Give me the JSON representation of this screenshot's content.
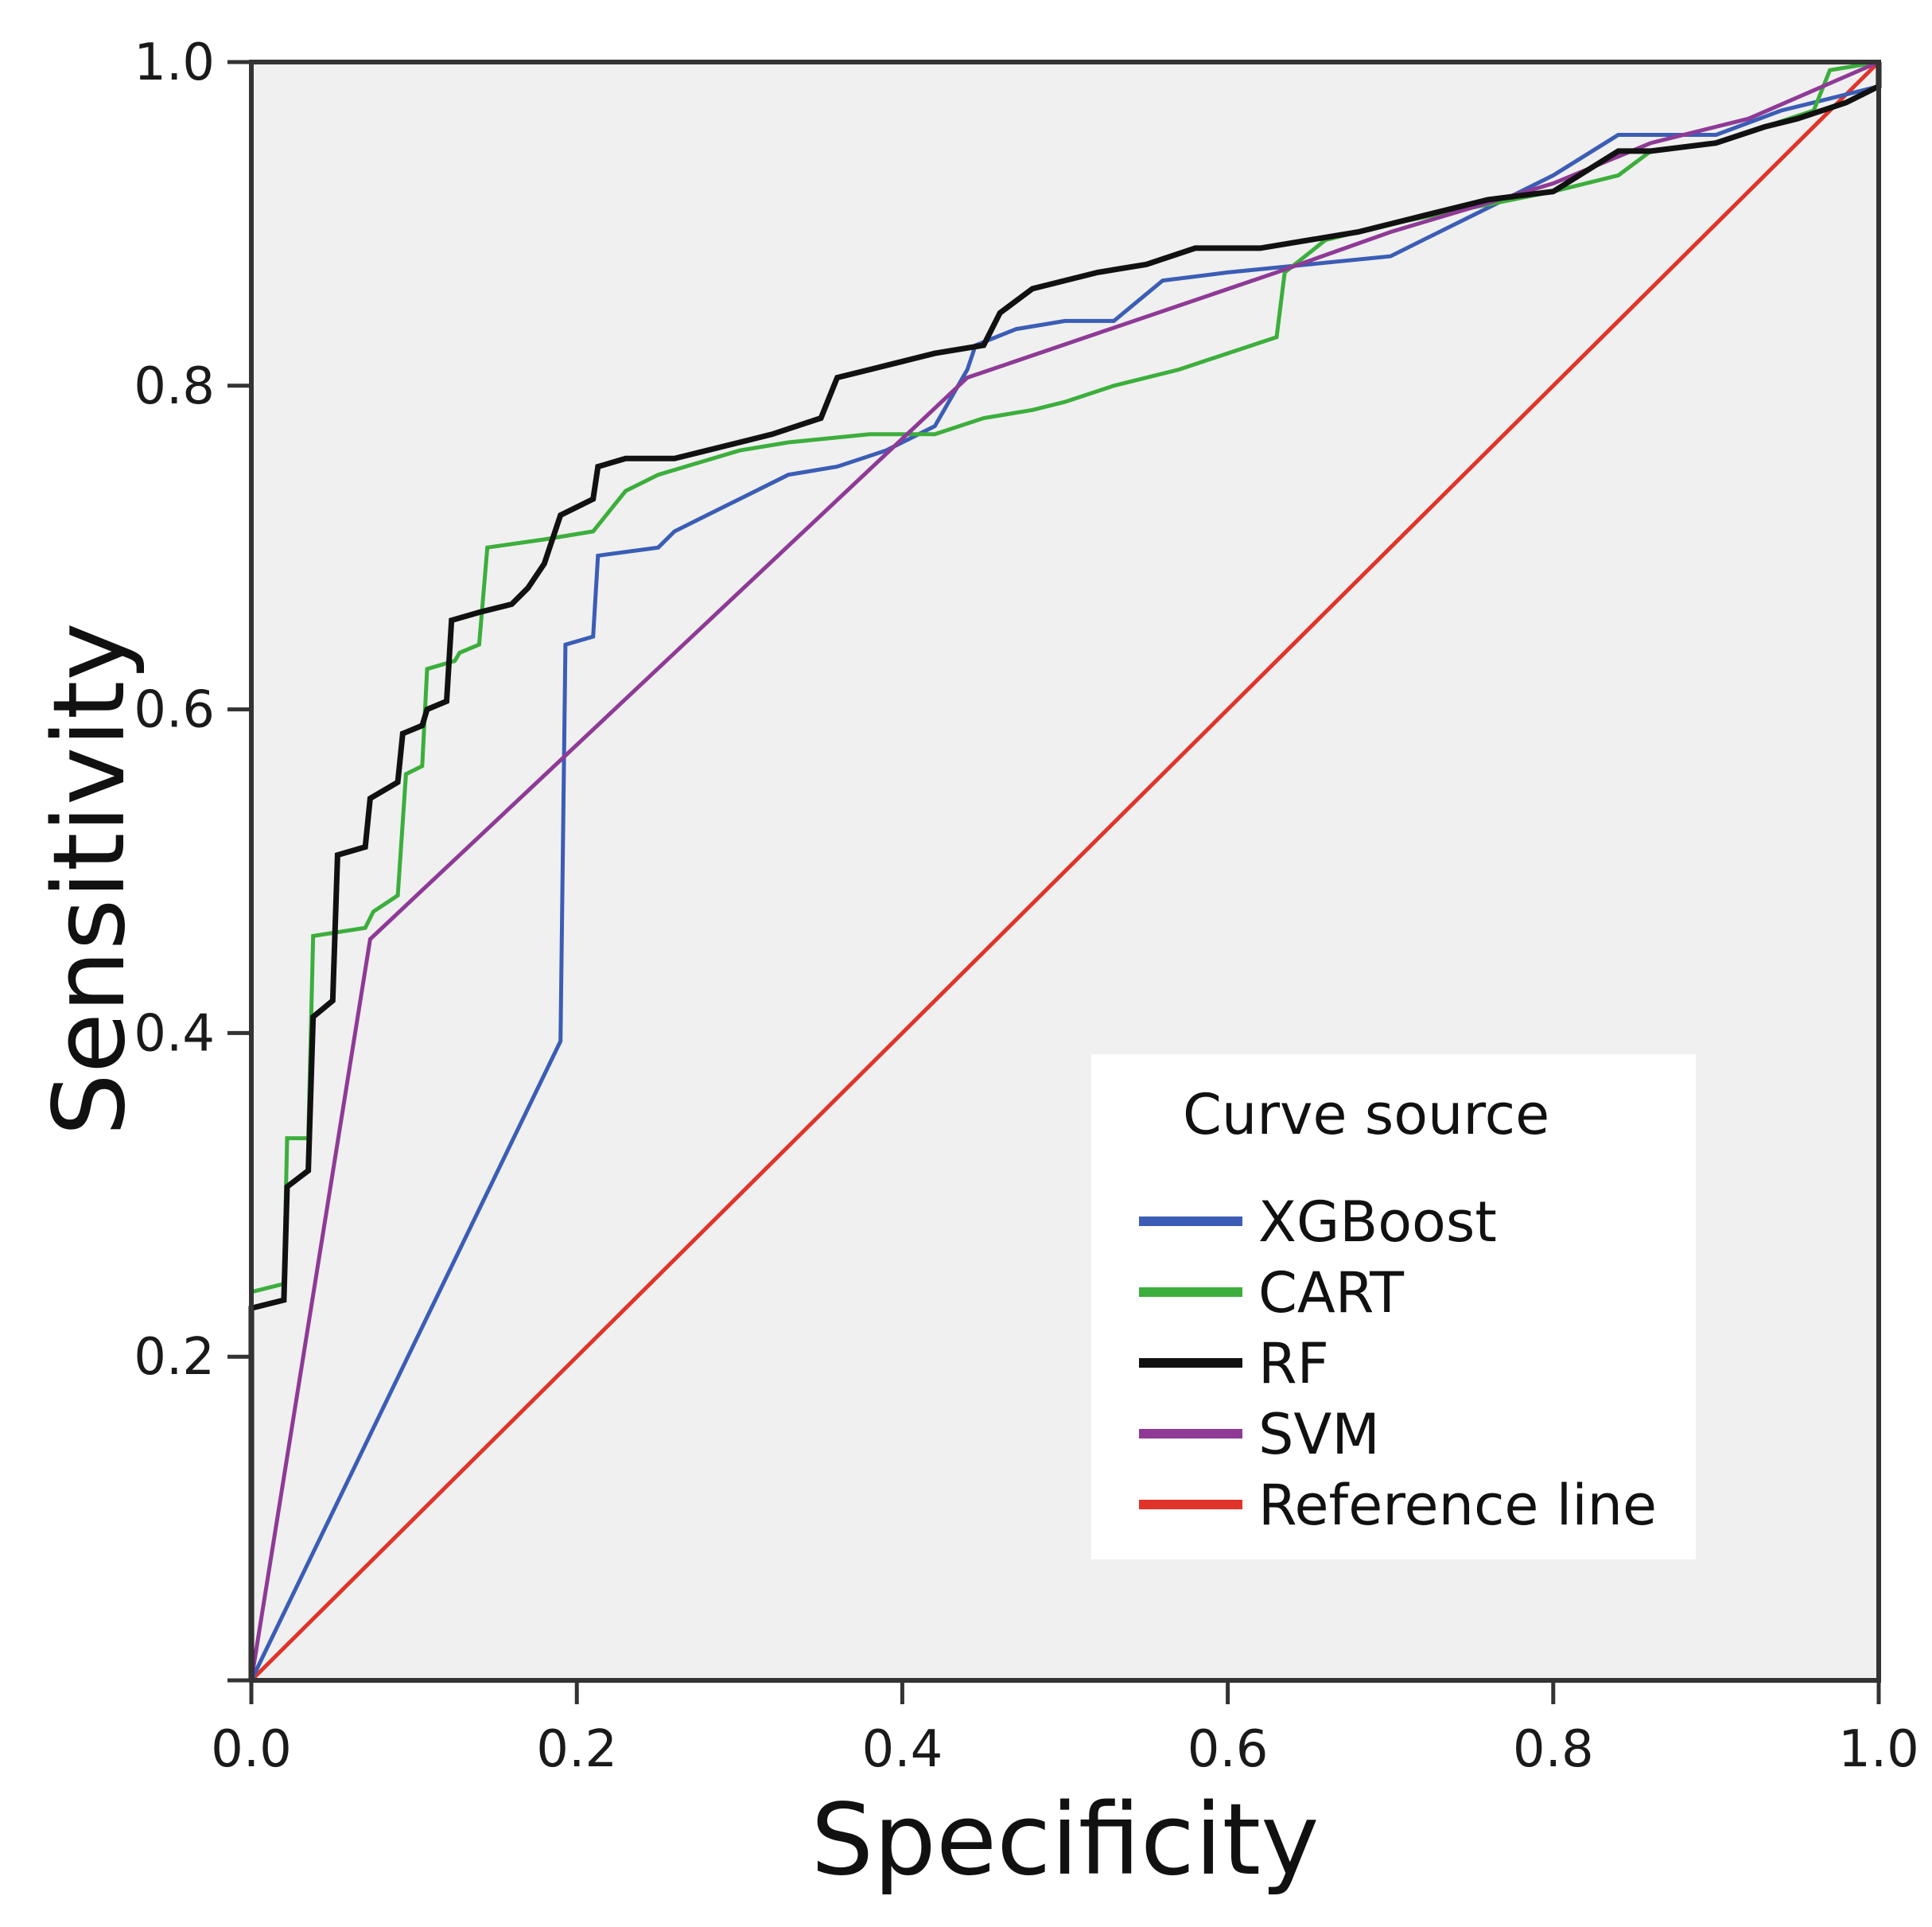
{
  "chart_data": {
    "type": "line",
    "title": "",
    "xlabel": "Specificity",
    "ylabel": "Sensitivity",
    "xlim": [
      0,
      1
    ],
    "ylim": [
      0,
      1
    ],
    "x_ticks": [
      "0.0",
      "0.2",
      "0.4",
      "0.6",
      "0.8",
      "1.0"
    ],
    "y_ticks": [
      "",
      "0.2",
      "0.4",
      "0.6",
      "0.8",
      "1.0"
    ],
    "grid": false,
    "background": "#f0f0f0",
    "legend": {
      "title": "Curve source",
      "placement": "bottom-right"
    },
    "series": [
      {
        "name": "XGBoost",
        "color": "#3b5db5",
        "points": [
          [
            0,
            0
          ],
          [
            0.19,
            0.395
          ],
          [
            0.193,
            0.64
          ],
          [
            0.21,
            0.645
          ],
          [
            0.213,
            0.695
          ],
          [
            0.25,
            0.7
          ],
          [
            0.26,
            0.71
          ],
          [
            0.28,
            0.72
          ],
          [
            0.3,
            0.73
          ],
          [
            0.33,
            0.745
          ],
          [
            0.36,
            0.75
          ],
          [
            0.39,
            0.76
          ],
          [
            0.42,
            0.775
          ],
          [
            0.44,
            0.81
          ],
          [
            0.445,
            0.825
          ],
          [
            0.47,
            0.835
          ],
          [
            0.5,
            0.84
          ],
          [
            0.53,
            0.84
          ],
          [
            0.56,
            0.865
          ],
          [
            0.6,
            0.87
          ],
          [
            0.65,
            0.875
          ],
          [
            0.7,
            0.88
          ],
          [
            0.72,
            0.89
          ],
          [
            0.76,
            0.91
          ],
          [
            0.8,
            0.93
          ],
          [
            0.84,
            0.955
          ],
          [
            0.9,
            0.955
          ],
          [
            0.94,
            0.97
          ],
          [
            0.96,
            0.975
          ],
          [
            1,
            0.985
          ],
          [
            1,
            1
          ]
        ]
      },
      {
        "name": "CART",
        "color": "#3cae3c",
        "points": [
          [
            0,
            0
          ],
          [
            0,
            0.24
          ],
          [
            0.02,
            0.245
          ],
          [
            0.022,
            0.335
          ],
          [
            0.035,
            0.335
          ],
          [
            0.038,
            0.46
          ],
          [
            0.07,
            0.465
          ],
          [
            0.075,
            0.475
          ],
          [
            0.09,
            0.485
          ],
          [
            0.095,
            0.56
          ],
          [
            0.105,
            0.565
          ],
          [
            0.108,
            0.625
          ],
          [
            0.125,
            0.63
          ],
          [
            0.128,
            0.635
          ],
          [
            0.14,
            0.64
          ],
          [
            0.145,
            0.7
          ],
          [
            0.18,
            0.705
          ],
          [
            0.21,
            0.71
          ],
          [
            0.23,
            0.735
          ],
          [
            0.25,
            0.745
          ],
          [
            0.3,
            0.76
          ],
          [
            0.33,
            0.765
          ],
          [
            0.38,
            0.77
          ],
          [
            0.42,
            0.77
          ],
          [
            0.45,
            0.78
          ],
          [
            0.48,
            0.785
          ],
          [
            0.5,
            0.79
          ],
          [
            0.53,
            0.8
          ],
          [
            0.57,
            0.81
          ],
          [
            0.6,
            0.82
          ],
          [
            0.63,
            0.83
          ],
          [
            0.635,
            0.87
          ],
          [
            0.66,
            0.89
          ],
          [
            0.7,
            0.9
          ],
          [
            0.75,
            0.91
          ],
          [
            0.8,
            0.92
          ],
          [
            0.84,
            0.93
          ],
          [
            0.86,
            0.945
          ],
          [
            0.9,
            0.95
          ],
          [
            0.96,
            0.97
          ],
          [
            0.97,
            0.995
          ],
          [
            1,
            1
          ]
        ]
      },
      {
        "name": "RF",
        "color": "#111111",
        "points": [
          [
            0,
            0
          ],
          [
            0,
            0.23
          ],
          [
            0.02,
            0.235
          ],
          [
            0.022,
            0.305
          ],
          [
            0.035,
            0.315
          ],
          [
            0.038,
            0.41
          ],
          [
            0.05,
            0.42
          ],
          [
            0.053,
            0.51
          ],
          [
            0.07,
            0.515
          ],
          [
            0.073,
            0.545
          ],
          [
            0.09,
            0.555
          ],
          [
            0.093,
            0.585
          ],
          [
            0.105,
            0.59
          ],
          [
            0.108,
            0.6
          ],
          [
            0.12,
            0.605
          ],
          [
            0.123,
            0.655
          ],
          [
            0.14,
            0.66
          ],
          [
            0.16,
            0.665
          ],
          [
            0.17,
            0.675
          ],
          [
            0.18,
            0.69
          ],
          [
            0.19,
            0.72
          ],
          [
            0.21,
            0.73
          ],
          [
            0.213,
            0.75
          ],
          [
            0.23,
            0.755
          ],
          [
            0.26,
            0.755
          ],
          [
            0.3,
            0.765
          ],
          [
            0.32,
            0.77
          ],
          [
            0.35,
            0.78
          ],
          [
            0.36,
            0.805
          ],
          [
            0.38,
            0.81
          ],
          [
            0.4,
            0.815
          ],
          [
            0.42,
            0.82
          ],
          [
            0.45,
            0.825
          ],
          [
            0.46,
            0.845
          ],
          [
            0.48,
            0.86
          ],
          [
            0.5,
            0.865
          ],
          [
            0.52,
            0.87
          ],
          [
            0.55,
            0.875
          ],
          [
            0.58,
            0.885
          ],
          [
            0.62,
            0.885
          ],
          [
            0.65,
            0.89
          ],
          [
            0.68,
            0.895
          ],
          [
            0.72,
            0.905
          ],
          [
            0.76,
            0.915
          ],
          [
            0.8,
            0.92
          ],
          [
            0.84,
            0.945
          ],
          [
            0.86,
            0.945
          ],
          [
            0.9,
            0.95
          ],
          [
            0.93,
            0.96
          ],
          [
            0.95,
            0.965
          ],
          [
            0.98,
            0.975
          ],
          [
            1,
            0.985
          ],
          [
            1,
            1
          ]
        ]
      },
      {
        "name": "SVM",
        "color": "#8e3a96",
        "points": [
          [
            0,
            0
          ],
          [
            0.073,
            0.458
          ],
          [
            0.44,
            0.805
          ],
          [
            0.63,
            0.87
          ],
          [
            0.7,
            0.895
          ],
          [
            0.8,
            0.925
          ],
          [
            0.86,
            0.95
          ],
          [
            0.92,
            0.965
          ],
          [
            1,
            1
          ]
        ]
      },
      {
        "name": "Reference line",
        "color": "#e0342a",
        "points": [
          [
            0,
            0
          ],
          [
            1,
            1
          ]
        ]
      }
    ]
  }
}
